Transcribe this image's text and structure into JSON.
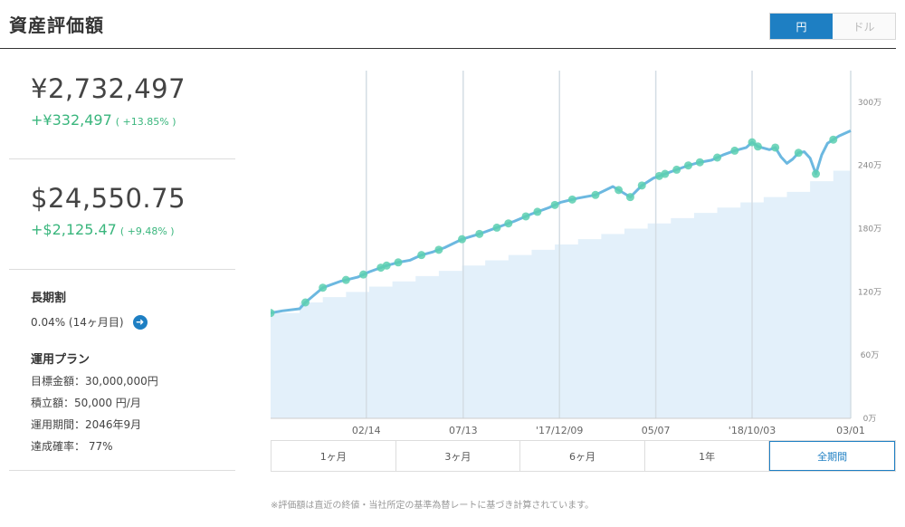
{
  "header": {
    "title": "資産評価額",
    "currency_options": [
      "円",
      "ドル"
    ],
    "active_currency": "円"
  },
  "summary": {
    "jpy": {
      "amount": "¥2,732,497",
      "gain": "+¥332,497",
      "gain_pct": "( +13.85% )"
    },
    "usd": {
      "amount": "$24,550.75",
      "gain": "+$2,125.47",
      "gain_pct": "( +9.48% )"
    }
  },
  "discount": {
    "label": "長期割",
    "value": "0.04% (14ヶ月目)"
  },
  "plan": {
    "label": "運用プラン",
    "rows": [
      "目標金額：30,000,000円",
      "積立額：50,000 円/月",
      "運用期間：2046年9月",
      "達成確率： 77%"
    ]
  },
  "range": {
    "options": [
      "1ヶ月",
      "3ヶ月",
      "6ヶ月",
      "1年",
      "全期間"
    ],
    "active": "全期間"
  },
  "footnote": "※評価額は直近の終値・当社所定の基準為替レートに基づき計算されています。",
  "chart_data": {
    "type": "area",
    "x_ticks": [
      "02/14",
      "07/13",
      "'17/12/09",
      "05/07",
      "'18/10/03",
      "03/01"
    ],
    "y_ticks": [
      "0万",
      "60万",
      "120万",
      "180万",
      "240万",
      "300万"
    ],
    "ylim": [
      0,
      330
    ],
    "y_unit": "万",
    "colors": {
      "value_line": "#6cb8e0",
      "deposit_fill": "#e3f0fa",
      "marker": "#5ccfb0",
      "grid": "#d4dde4"
    },
    "series": [
      {
        "role": "value_line",
        "x": [
          0,
          0.02,
          0.05,
          0.06,
          0.09,
          0.12,
          0.15,
          0.17,
          0.19,
          0.2,
          0.22,
          0.24,
          0.26,
          0.28,
          0.3,
          0.33,
          0.36,
          0.39,
          0.42,
          0.45,
          0.48,
          0.5,
          0.53,
          0.56,
          0.59,
          0.62,
          0.64,
          0.66,
          0.68,
          0.7,
          0.72,
          0.74,
          0.76,
          0.78,
          0.8,
          0.82,
          0.83,
          0.84,
          0.86,
          0.87,
          0.88,
          0.89,
          0.9,
          0.91,
          0.92,
          0.93,
          0.94,
          0.95,
          0.96,
          0.98,
          1.0
        ],
        "values": [
          100,
          102,
          104,
          110,
          124,
          130,
          134,
          139,
          143,
          145,
          148,
          150,
          155,
          158,
          162,
          170,
          175,
          181,
          187,
          194,
          200,
          205,
          209,
          212,
          220,
          210,
          221,
          228,
          232,
          236,
          240,
          243,
          245,
          250,
          254,
          257,
          262,
          258,
          255,
          257,
          248,
          242,
          246,
          252,
          253,
          247,
          232,
          250,
          261,
          268,
          273
        ]
      },
      {
        "role": "deposit_area",
        "x": [
          0,
          0.05,
          0.09,
          0.13,
          0.17,
          0.21,
          0.25,
          0.29,
          0.33,
          0.37,
          0.41,
          0.45,
          0.49,
          0.53,
          0.57,
          0.61,
          0.65,
          0.69,
          0.73,
          0.77,
          0.81,
          0.85,
          0.89,
          0.93,
          0.97,
          1.0
        ],
        "values": [
          100,
          110,
          115,
          120,
          125,
          130,
          135,
          140,
          145,
          150,
          155,
          160,
          165,
          170,
          175,
          180,
          185,
          190,
          195,
          200,
          205,
          210,
          215,
          225,
          235,
          240
        ]
      }
    ],
    "markers_x": [
      0,
      0.06,
      0.09,
      0.13,
      0.16,
      0.19,
      0.2,
      0.22,
      0.26,
      0.29,
      0.33,
      0.36,
      0.39,
      0.41,
      0.44,
      0.46,
      0.49,
      0.52,
      0.56,
      0.6,
      0.62,
      0.64,
      0.67,
      0.68,
      0.7,
      0.72,
      0.74,
      0.77,
      0.8,
      0.83,
      0.84,
      0.87,
      0.91,
      0.94,
      0.97
    ]
  }
}
